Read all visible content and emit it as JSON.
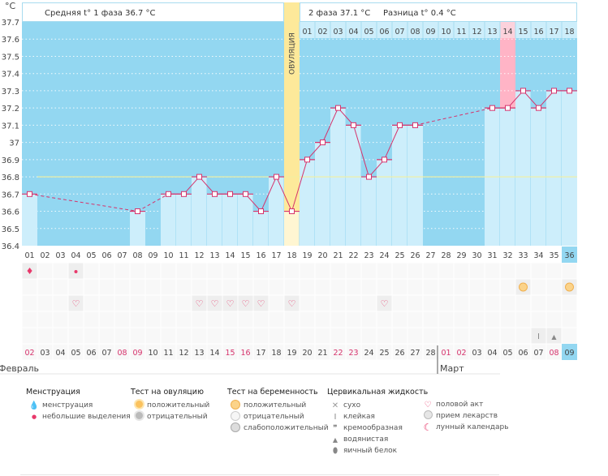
{
  "header": {
    "unit_label": "°C",
    "phase1_text": "Средняя t° 1 фаза 36.7 °C",
    "phase2_text": "2 фаза 37.1 °C",
    "diff_text": "Разница t° 0.4 °C",
    "ovulation_label": "ОВУЛЯЦИЯ"
  },
  "colors": {
    "plot_bg": "#93d7f1",
    "bar_fill": "#cdeefb",
    "line": "#d6336c",
    "ovulation": "#fde99a",
    "ovulation_bar": "#fff6d2",
    "highlight_day": "#ffb4c6",
    "coverline": "#f3f0a0",
    "weekend_red": "#d6336c",
    "current_day": "#93d7f1"
  },
  "chart_data": {
    "type": "bar",
    "title": "",
    "xlabel": "",
    "ylabel": "°C",
    "ylim": [
      36.4,
      37.7
    ],
    "yticks": [
      "37.7",
      "37.6",
      "37.5",
      "37.4",
      "37.3",
      "37.2",
      "37.1",
      "37",
      "36.9",
      "36.8",
      "36.7",
      "36.6",
      "36.5",
      "36.4"
    ],
    "grid": true,
    "coverline": 36.8,
    "ovulation_cycle_day": 18,
    "highlight_dpo": 14,
    "categories": [
      "01",
      "02",
      "03",
      "04",
      "05",
      "06",
      "07",
      "08",
      "09",
      "10",
      "11",
      "12",
      "13",
      "14",
      "15",
      "16",
      "17",
      "18",
      "19",
      "20",
      "21",
      "22",
      "23",
      "24",
      "25",
      "26",
      "27",
      "28",
      "29",
      "30",
      "31",
      "32",
      "33",
      "34",
      "35",
      "36"
    ],
    "values": [
      36.7,
      null,
      null,
      null,
      null,
      null,
      null,
      36.6,
      null,
      36.7,
      36.7,
      36.8,
      36.7,
      36.7,
      36.7,
      36.6,
      36.8,
      36.6,
      36.9,
      37.0,
      37.2,
      37.1,
      36.8,
      36.9,
      37.1,
      37.1,
      null,
      null,
      null,
      null,
      37.2,
      37.2,
      37.3,
      37.2,
      37.3,
      37.3
    ],
    "dpo_labels": [
      "01",
      "02",
      "03",
      "04",
      "05",
      "06",
      "07",
      "08",
      "09",
      "10",
      "11",
      "12",
      "13",
      "14",
      "15",
      "16",
      "17",
      "18"
    ],
    "dates": [
      "02",
      "03",
      "04",
      "05",
      "06",
      "07",
      "08",
      "09",
      "10",
      "11",
      "12",
      "13",
      "14",
      "15",
      "16",
      "17",
      "18",
      "19",
      "20",
      "21",
      "22",
      "23",
      "24",
      "25",
      "26",
      "27",
      "28",
      "01",
      "02",
      "03",
      "04",
      "05",
      "06",
      "07",
      "08",
      "09"
    ],
    "weekend_date_indices": [
      0,
      6,
      7,
      13,
      14,
      20,
      21,
      27,
      28,
      34
    ],
    "current_index": 35,
    "months": [
      {
        "label": "Февраль",
        "start_index": 0
      },
      {
        "label": "Март",
        "start_index": 27
      }
    ],
    "markers": {
      "menstruation": [
        0
      ],
      "spotting": [
        3
      ],
      "pregnancy_test_positive": [
        32,
        35
      ],
      "intercourse": [
        3,
        11,
        12,
        13,
        14,
        15,
        17,
        23
      ],
      "cervical_sticky": [
        33
      ],
      "cervical_watery": [
        34
      ]
    }
  },
  "legend": {
    "menstruation": {
      "title": "Менструация",
      "items": [
        "менструация",
        "небольшие выделения"
      ]
    },
    "ovulation_test": {
      "title": "Тест на овуляцию",
      "items": [
        "положительный",
        "отрицательный"
      ]
    },
    "pregnancy_test": {
      "title": "Тест на беременность",
      "items": [
        "положительный",
        "отрицательный",
        "слабоположительный"
      ]
    },
    "cervical": {
      "title": "Цервикальная жидкость",
      "items": [
        "сухо",
        "клейкая",
        "кремообразная",
        "водянистая",
        "яичный белок"
      ]
    },
    "other": {
      "items": [
        "половой акт",
        "прием лекарств",
        "лунный календарь"
      ]
    }
  }
}
